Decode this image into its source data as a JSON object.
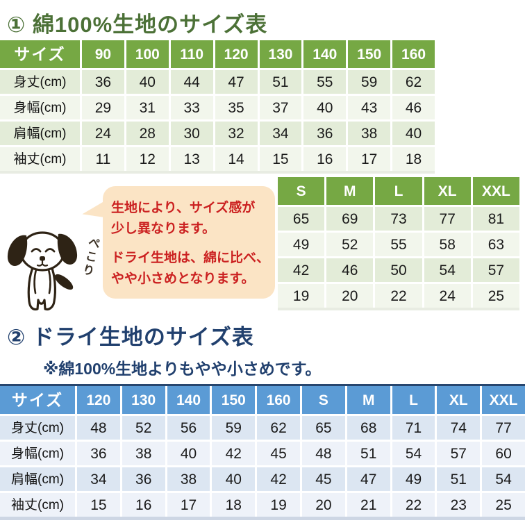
{
  "colors": {
    "cotton_header_green": "#76a844",
    "cotton_row_light": "#e3ecd8",
    "cotton_row_lighter": "#f2f6ec",
    "dry_header_blue": "#5b9bd5",
    "dry_row_light": "#dce6f2",
    "dry_row_lighter": "#eef2f9",
    "title1_green": "#4c7137",
    "title2_navy": "#21406e",
    "note_red": "#cb2020",
    "bubble_peach": "#fbe4c5"
  },
  "section1": {
    "title": "① 綿100%生地のサイズ表",
    "kids_table": {
      "header": [
        "サイズ",
        "90",
        "100",
        "110",
        "120",
        "130",
        "140",
        "150",
        "160"
      ],
      "rows": [
        {
          "label": "身丈(cm)",
          "values": [
            "36",
            "40",
            "44",
            "47",
            "51",
            "55",
            "59",
            "62"
          ]
        },
        {
          "label": "身幅(cm)",
          "values": [
            "29",
            "31",
            "33",
            "35",
            "37",
            "40",
            "43",
            "46"
          ]
        },
        {
          "label": "肩幅(cm)",
          "values": [
            "24",
            "28",
            "30",
            "32",
            "34",
            "36",
            "38",
            "40"
          ]
        },
        {
          "label": "袖丈(cm)",
          "values": [
            "11",
            "12",
            "13",
            "14",
            "15",
            "16",
            "17",
            "18"
          ]
        }
      ]
    },
    "adult_table": {
      "header": [
        "S",
        "M",
        "L",
        "XL",
        "XXL"
      ],
      "rows": [
        [
          "65",
          "69",
          "73",
          "77",
          "81"
        ],
        [
          "49",
          "52",
          "55",
          "58",
          "63"
        ],
        [
          "42",
          "46",
          "50",
          "54",
          "57"
        ],
        [
          "19",
          "20",
          "22",
          "24",
          "25"
        ]
      ]
    }
  },
  "callout": {
    "paragraph1_line1": "生地により、サイズ感が",
    "paragraph1_line2": "少し異なります。",
    "paragraph2_line1": "ドライ生地は、綿に比べ、",
    "paragraph2_line2": "やや小さめとなります。",
    "dog_caption": "ぺこり"
  },
  "section2": {
    "title": "② ドライ生地のサイズ表",
    "subtitle": "※綿100%生地よりもやや小さめです。",
    "table": {
      "header": [
        "サイズ",
        "120",
        "130",
        "140",
        "150",
        "160",
        "S",
        "M",
        "L",
        "XL",
        "XXL"
      ],
      "rows": [
        {
          "label": "身丈(cm)",
          "values": [
            "48",
            "52",
            "56",
            "59",
            "62",
            "65",
            "68",
            "71",
            "74",
            "77"
          ]
        },
        {
          "label": "身幅(cm)",
          "values": [
            "36",
            "38",
            "40",
            "42",
            "45",
            "48",
            "51",
            "54",
            "57",
            "60"
          ]
        },
        {
          "label": "肩幅(cm)",
          "values": [
            "34",
            "36",
            "38",
            "40",
            "42",
            "45",
            "47",
            "49",
            "51",
            "54"
          ]
        },
        {
          "label": "袖丈(cm)",
          "values": [
            "15",
            "16",
            "17",
            "18",
            "19",
            "20",
            "21",
            "22",
            "23",
            "25"
          ]
        }
      ]
    }
  }
}
